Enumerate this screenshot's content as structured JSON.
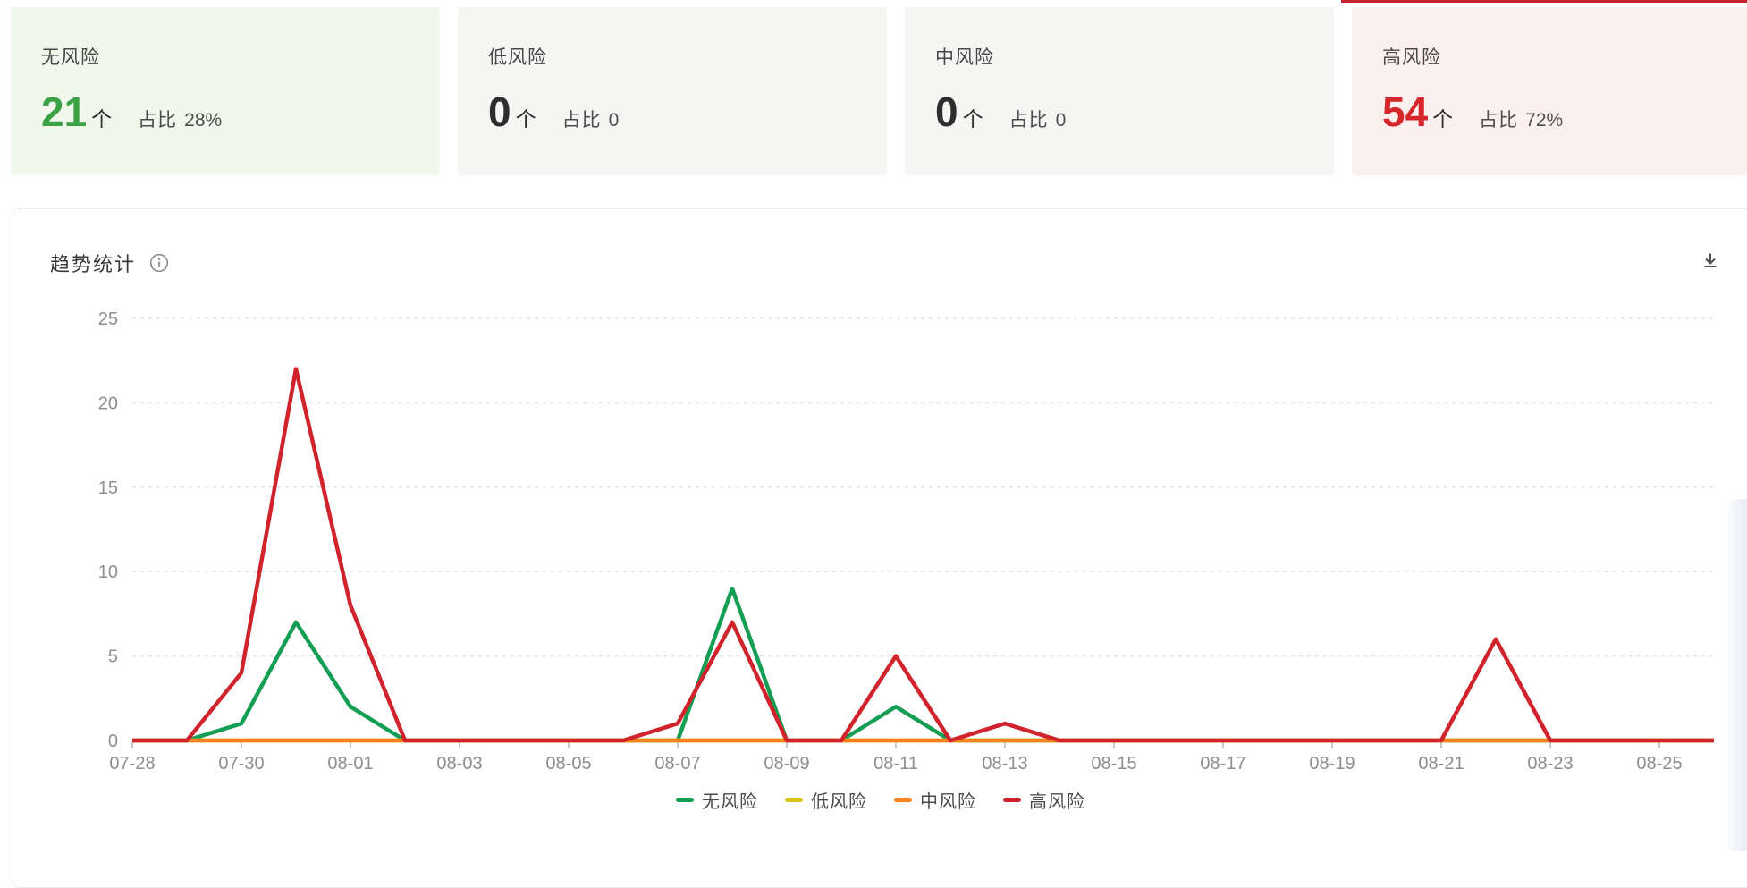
{
  "summary_cards": [
    {
      "label": "无风险",
      "count": "21",
      "unit": "个",
      "ratio_label": "占比",
      "ratio": "28%",
      "accent": "#3aa144",
      "bg": "#f0f7eb",
      "selected": false
    },
    {
      "label": "低风险",
      "count": "0",
      "unit": "个",
      "ratio_label": "占比",
      "ratio": "0",
      "accent": "#2d2d2d",
      "bg": "#f5f5f3",
      "selected": false
    },
    {
      "label": "中风险",
      "count": "0",
      "unit": "个",
      "ratio_label": "占比",
      "ratio": "0",
      "accent": "#2d2d2d",
      "bg": "#f5f5f3",
      "selected": false
    },
    {
      "label": "高风险",
      "count": "54",
      "unit": "个",
      "ratio_label": "占比",
      "ratio": "72%",
      "accent": "#d5262c",
      "bg": "#fcf0ef",
      "selected": true,
      "strip_color": "#c4232e"
    }
  ],
  "panel": {
    "title": "趋势统计",
    "info_icon": "info-icon",
    "download_icon": "download-icon"
  },
  "chart_data": {
    "type": "line",
    "x": [
      "07-28",
      "07-29",
      "07-30",
      "07-31",
      "08-01",
      "08-02",
      "08-03",
      "08-04",
      "08-05",
      "08-06",
      "08-07",
      "08-08",
      "08-09",
      "08-10",
      "08-11",
      "08-12",
      "08-13",
      "08-14",
      "08-15",
      "08-16",
      "08-17",
      "08-18",
      "08-19",
      "08-20",
      "08-21",
      "08-22",
      "08-23",
      "08-24",
      "08-25",
      "08-26"
    ],
    "x_tick_labels": [
      "07-28",
      "07-30",
      "08-01",
      "08-03",
      "08-05",
      "08-07",
      "08-09",
      "08-11",
      "08-13",
      "08-15",
      "08-17",
      "08-19",
      "08-21",
      "08-23",
      "08-25"
    ],
    "x_tick_step": 2,
    "series": [
      {
        "name": "无风险",
        "color": "#149e53",
        "values": [
          0,
          0,
          1,
          7,
          2,
          0,
          0,
          0,
          0,
          0,
          0,
          9,
          0,
          0,
          2,
          0,
          0,
          0,
          0,
          0,
          0,
          0,
          0,
          0,
          0,
          0,
          0,
          0,
          0,
          0
        ]
      },
      {
        "name": "低风险",
        "color": "#d9c51f",
        "values": [
          0,
          0,
          0,
          0,
          0,
          0,
          0,
          0,
          0,
          0,
          0,
          0,
          0,
          0,
          0,
          0,
          0,
          0,
          0,
          0,
          0,
          0,
          0,
          0,
          0,
          0,
          0,
          0,
          0,
          0
        ]
      },
      {
        "name": "中风险",
        "color": "#f5821e",
        "values": [
          0,
          0,
          0,
          0,
          0,
          0,
          0,
          0,
          0,
          0,
          0,
          0,
          0,
          0,
          0,
          0,
          0,
          0,
          0,
          0,
          0,
          0,
          0,
          0,
          0,
          0,
          0,
          0,
          0,
          0
        ]
      },
      {
        "name": "高风险",
        "color": "#d0232b",
        "values": [
          0,
          0,
          4,
          22,
          8,
          0,
          0,
          0,
          0,
          0,
          1,
          7,
          0,
          0,
          5,
          0,
          1,
          0,
          0,
          0,
          0,
          0,
          0,
          0,
          0,
          6,
          0,
          0,
          0,
          0
        ]
      }
    ],
    "ylim": [
      0,
      25
    ],
    "yticks": [
      0,
      5,
      10,
      15,
      20,
      25
    ],
    "grid": "dashed-horizontal",
    "legend_position": "bottom"
  }
}
